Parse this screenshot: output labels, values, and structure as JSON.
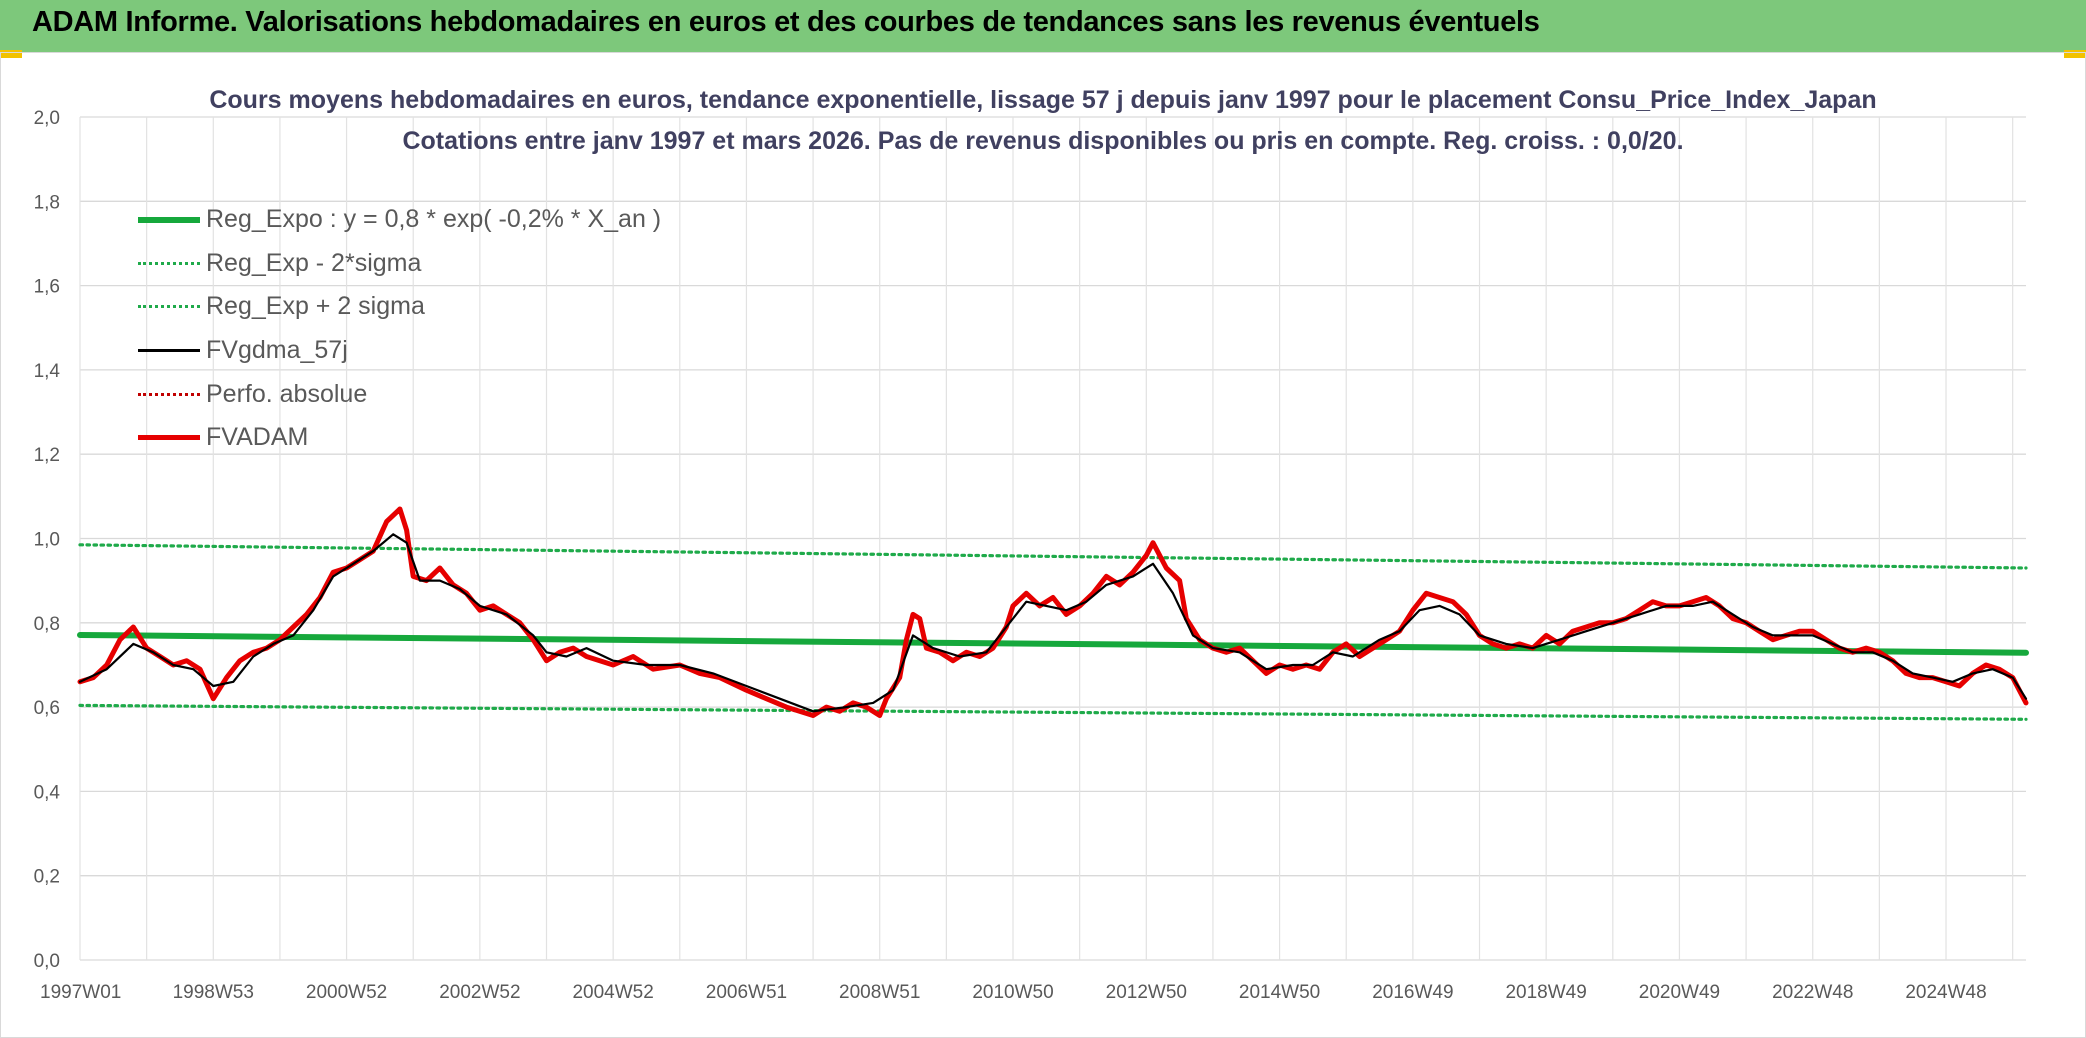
{
  "header": {
    "title": "ADAM Informe. Valorisations hebdomadaires en euros et des courbes de tendances sans les revenus éventuels"
  },
  "colors": {
    "header_bg": "#7dc87b",
    "reg_expo": "#16a83c",
    "sigma": "#1faa4a",
    "fvgdma": "#000000",
    "perfo": "#c00000",
    "fvadam": "#e60000"
  },
  "chart_data": {
    "type": "line",
    "title": "Cours moyens hebdomadaires en euros, tendance exponentielle, lissage 57 j depuis janv 1997 pour le placement Consu_Price_Index_Japan",
    "subtitle": "Cotations entre janv 1997 et mars 2026. Pas de revenus disponibles ou pris en compte. Reg. croiss. : 0,0/20.",
    "ylim": [
      0,
      2
    ],
    "yticks": [
      "0,0",
      "0,2",
      "0,4",
      "0,6",
      "0,8",
      "1,0",
      "1,2",
      "1,4",
      "1,6",
      "1,8",
      "2,0"
    ],
    "xlim": [
      1997.0,
      2026.2
    ],
    "xticks": [
      {
        "label": "1997W01",
        "t": 1997.0
      },
      {
        "label": "1998W53",
        "t": 1999.0
      },
      {
        "label": "2000W52",
        "t": 2001.0
      },
      {
        "label": "2002W52",
        "t": 2003.0
      },
      {
        "label": "2004W52",
        "t": 2005.0
      },
      {
        "label": "2006W51",
        "t": 2007.0
      },
      {
        "label": "2008W51",
        "t": 2009.0
      },
      {
        "label": "2010W50",
        "t": 2011.0
      },
      {
        "label": "2012W50",
        "t": 2013.0
      },
      {
        "label": "2014W50",
        "t": 2015.0
      },
      {
        "label": "2016W49",
        "t": 2017.0
      },
      {
        "label": "2018W49",
        "t": 2019.0
      },
      {
        "label": "2020W49",
        "t": 2021.0
      },
      {
        "label": "2022W48",
        "t": 2023.0
      },
      {
        "label": "2024W48",
        "t": 2025.0
      }
    ],
    "grid": true,
    "legend_position": "top-left",
    "series": [
      {
        "name": "Reg_Expo : y = 0,8 * exp( -0,2% *  X_an )",
        "style": "solid-thick",
        "color": "#16a83c",
        "points": [
          [
            1997.0,
            0.771
          ],
          [
            2026.2,
            0.729
          ]
        ]
      },
      {
        "name": "Reg_Exp - 2*sigma",
        "style": "dotted",
        "color": "#1faa4a",
        "points": [
          [
            1997.0,
            0.604
          ],
          [
            2026.2,
            0.571
          ]
        ]
      },
      {
        "name": "Reg_Exp + 2 sigma",
        "style": "dotted",
        "color": "#1faa4a",
        "points": [
          [
            1997.0,
            0.985
          ],
          [
            2026.2,
            0.93
          ]
        ]
      },
      {
        "name": "FVgdma_57j",
        "style": "solid",
        "color": "#000000",
        "points": [
          [
            1997.0,
            0.66
          ],
          [
            1997.4,
            0.69
          ],
          [
            1997.8,
            0.75
          ],
          [
            1998.1,
            0.73
          ],
          [
            1998.4,
            0.7
          ],
          [
            1998.7,
            0.69
          ],
          [
            1999.0,
            0.65
          ],
          [
            1999.3,
            0.66
          ],
          [
            1999.6,
            0.72
          ],
          [
            1999.9,
            0.75
          ],
          [
            2000.2,
            0.77
          ],
          [
            2000.5,
            0.83
          ],
          [
            2000.8,
            0.91
          ],
          [
            2001.1,
            0.94
          ],
          [
            2001.4,
            0.97
          ],
          [
            2001.7,
            1.01
          ],
          [
            2001.9,
            0.99
          ],
          [
            2002.1,
            0.9
          ],
          [
            2002.4,
            0.9
          ],
          [
            2002.7,
            0.88
          ],
          [
            2003.0,
            0.84
          ],
          [
            2003.4,
            0.82
          ],
          [
            2003.8,
            0.77
          ],
          [
            2004.0,
            0.73
          ],
          [
            2004.3,
            0.72
          ],
          [
            2004.6,
            0.74
          ],
          [
            2005.0,
            0.71
          ],
          [
            2005.5,
            0.7
          ],
          [
            2006.0,
            0.7
          ],
          [
            2006.5,
            0.68
          ],
          [
            2007.0,
            0.65
          ],
          [
            2007.5,
            0.62
          ],
          [
            2008.0,
            0.59
          ],
          [
            2008.5,
            0.6
          ],
          [
            2008.9,
            0.61
          ],
          [
            2009.2,
            0.64
          ],
          [
            2009.5,
            0.77
          ],
          [
            2009.8,
            0.74
          ],
          [
            2010.2,
            0.72
          ],
          [
            2010.6,
            0.73
          ],
          [
            2010.9,
            0.79
          ],
          [
            2011.2,
            0.85
          ],
          [
            2011.5,
            0.84
          ],
          [
            2011.8,
            0.83
          ],
          [
            2012.1,
            0.85
          ],
          [
            2012.4,
            0.89
          ],
          [
            2012.8,
            0.91
          ],
          [
            2013.1,
            0.94
          ],
          [
            2013.4,
            0.87
          ],
          [
            2013.7,
            0.77
          ],
          [
            2014.0,
            0.74
          ],
          [
            2014.4,
            0.73
          ],
          [
            2014.8,
            0.69
          ],
          [
            2015.2,
            0.7
          ],
          [
            2015.5,
            0.7
          ],
          [
            2015.8,
            0.73
          ],
          [
            2016.1,
            0.72
          ],
          [
            2016.5,
            0.76
          ],
          [
            2016.8,
            0.78
          ],
          [
            2017.1,
            0.83
          ],
          [
            2017.4,
            0.84
          ],
          [
            2017.7,
            0.82
          ],
          [
            2018.0,
            0.77
          ],
          [
            2018.4,
            0.75
          ],
          [
            2018.8,
            0.74
          ],
          [
            2019.2,
            0.76
          ],
          [
            2019.6,
            0.78
          ],
          [
            2020.0,
            0.8
          ],
          [
            2020.4,
            0.82
          ],
          [
            2020.8,
            0.84
          ],
          [
            2021.2,
            0.84
          ],
          [
            2021.5,
            0.85
          ],
          [
            2021.8,
            0.82
          ],
          [
            2022.1,
            0.79
          ],
          [
            2022.4,
            0.77
          ],
          [
            2022.7,
            0.77
          ],
          [
            2023.0,
            0.77
          ],
          [
            2023.3,
            0.75
          ],
          [
            2023.6,
            0.73
          ],
          [
            2023.9,
            0.73
          ],
          [
            2024.2,
            0.71
          ],
          [
            2024.5,
            0.68
          ],
          [
            2024.8,
            0.67
          ],
          [
            2025.1,
            0.66
          ],
          [
            2025.4,
            0.68
          ],
          [
            2025.7,
            0.69
          ],
          [
            2026.0,
            0.67
          ],
          [
            2026.2,
            0.62
          ]
        ]
      },
      {
        "name": "Perfo. absolue",
        "style": "dotted",
        "color": "#c00000",
        "points": []
      },
      {
        "name": "FVADAM",
        "style": "solid-thick",
        "color": "#e60000",
        "points": [
          [
            1997.0,
            0.66
          ],
          [
            1997.2,
            0.67
          ],
          [
            1997.4,
            0.7
          ],
          [
            1997.6,
            0.76
          ],
          [
            1997.8,
            0.79
          ],
          [
            1998.0,
            0.74
          ],
          [
            1998.2,
            0.72
          ],
          [
            1998.4,
            0.7
          ],
          [
            1998.6,
            0.71
          ],
          [
            1998.8,
            0.69
          ],
          [
            1999.0,
            0.62
          ],
          [
            1999.2,
            0.67
          ],
          [
            1999.4,
            0.71
          ],
          [
            1999.6,
            0.73
          ],
          [
            1999.8,
            0.74
          ],
          [
            2000.0,
            0.76
          ],
          [
            2000.2,
            0.79
          ],
          [
            2000.4,
            0.82
          ],
          [
            2000.6,
            0.86
          ],
          [
            2000.8,
            0.92
          ],
          [
            2001.0,
            0.93
          ],
          [
            2001.2,
            0.95
          ],
          [
            2001.4,
            0.97
          ],
          [
            2001.6,
            1.04
          ],
          [
            2001.8,
            1.07
          ],
          [
            2001.9,
            1.02
          ],
          [
            2002.0,
            0.91
          ],
          [
            2002.2,
            0.9
          ],
          [
            2002.4,
            0.93
          ],
          [
            2002.6,
            0.89
          ],
          [
            2002.8,
            0.87
          ],
          [
            2003.0,
            0.83
          ],
          [
            2003.2,
            0.84
          ],
          [
            2003.4,
            0.82
          ],
          [
            2003.6,
            0.8
          ],
          [
            2003.8,
            0.76
          ],
          [
            2004.0,
            0.71
          ],
          [
            2004.2,
            0.73
          ],
          [
            2004.4,
            0.74
          ],
          [
            2004.6,
            0.72
          ],
          [
            2004.8,
            0.71
          ],
          [
            2005.0,
            0.7
          ],
          [
            2005.3,
            0.72
          ],
          [
            2005.6,
            0.69
          ],
          [
            2006.0,
            0.7
          ],
          [
            2006.3,
            0.68
          ],
          [
            2006.6,
            0.67
          ],
          [
            2007.0,
            0.64
          ],
          [
            2007.3,
            0.62
          ],
          [
            2007.6,
            0.6
          ],
          [
            2008.0,
            0.58
          ],
          [
            2008.2,
            0.6
          ],
          [
            2008.4,
            0.59
          ],
          [
            2008.6,
            0.61
          ],
          [
            2008.8,
            0.6
          ],
          [
            2009.0,
            0.58
          ],
          [
            2009.1,
            0.62
          ],
          [
            2009.3,
            0.67
          ],
          [
            2009.4,
            0.76
          ],
          [
            2009.5,
            0.82
          ],
          [
            2009.6,
            0.81
          ],
          [
            2009.7,
            0.74
          ],
          [
            2009.9,
            0.73
          ],
          [
            2010.1,
            0.71
          ],
          [
            2010.3,
            0.73
          ],
          [
            2010.5,
            0.72
          ],
          [
            2010.7,
            0.74
          ],
          [
            2010.9,
            0.79
          ],
          [
            2011.0,
            0.84
          ],
          [
            2011.2,
            0.87
          ],
          [
            2011.4,
            0.84
          ],
          [
            2011.6,
            0.86
          ],
          [
            2011.8,
            0.82
          ],
          [
            2012.0,
            0.84
          ],
          [
            2012.2,
            0.87
          ],
          [
            2012.4,
            0.91
          ],
          [
            2012.6,
            0.89
          ],
          [
            2012.8,
            0.92
          ],
          [
            2013.0,
            0.96
          ],
          [
            2013.1,
            0.99
          ],
          [
            2013.3,
            0.93
          ],
          [
            2013.5,
            0.9
          ],
          [
            2013.6,
            0.81
          ],
          [
            2013.8,
            0.76
          ],
          [
            2014.0,
            0.74
          ],
          [
            2014.2,
            0.73
          ],
          [
            2014.4,
            0.74
          ],
          [
            2014.6,
            0.71
          ],
          [
            2014.8,
            0.68
          ],
          [
            2015.0,
            0.7
          ],
          [
            2015.2,
            0.69
          ],
          [
            2015.4,
            0.7
          ],
          [
            2015.6,
            0.69
          ],
          [
            2015.8,
            0.73
          ],
          [
            2016.0,
            0.75
          ],
          [
            2016.2,
            0.72
          ],
          [
            2016.4,
            0.74
          ],
          [
            2016.6,
            0.76
          ],
          [
            2016.8,
            0.78
          ],
          [
            2017.0,
            0.83
          ],
          [
            2017.2,
            0.87
          ],
          [
            2017.4,
            0.86
          ],
          [
            2017.6,
            0.85
          ],
          [
            2017.8,
            0.82
          ],
          [
            2018.0,
            0.77
          ],
          [
            2018.2,
            0.75
          ],
          [
            2018.4,
            0.74
          ],
          [
            2018.6,
            0.75
          ],
          [
            2018.8,
            0.74
          ],
          [
            2019.0,
            0.77
          ],
          [
            2019.2,
            0.75
          ],
          [
            2019.4,
            0.78
          ],
          [
            2019.6,
            0.79
          ],
          [
            2019.8,
            0.8
          ],
          [
            2020.0,
            0.8
          ],
          [
            2020.2,
            0.81
          ],
          [
            2020.4,
            0.83
          ],
          [
            2020.6,
            0.85
          ],
          [
            2020.8,
            0.84
          ],
          [
            2021.0,
            0.84
          ],
          [
            2021.2,
            0.85
          ],
          [
            2021.4,
            0.86
          ],
          [
            2021.6,
            0.84
          ],
          [
            2021.8,
            0.81
          ],
          [
            2022.0,
            0.8
          ],
          [
            2022.2,
            0.78
          ],
          [
            2022.4,
            0.76
          ],
          [
            2022.6,
            0.77
          ],
          [
            2022.8,
            0.78
          ],
          [
            2023.0,
            0.78
          ],
          [
            2023.2,
            0.76
          ],
          [
            2023.4,
            0.74
          ],
          [
            2023.6,
            0.73
          ],
          [
            2023.8,
            0.74
          ],
          [
            2024.0,
            0.73
          ],
          [
            2024.2,
            0.71
          ],
          [
            2024.4,
            0.68
          ],
          [
            2024.6,
            0.67
          ],
          [
            2024.8,
            0.67
          ],
          [
            2025.0,
            0.66
          ],
          [
            2025.2,
            0.65
          ],
          [
            2025.4,
            0.68
          ],
          [
            2025.6,
            0.7
          ],
          [
            2025.8,
            0.69
          ],
          [
            2026.0,
            0.67
          ],
          [
            2026.2,
            0.61
          ]
        ]
      }
    ]
  }
}
